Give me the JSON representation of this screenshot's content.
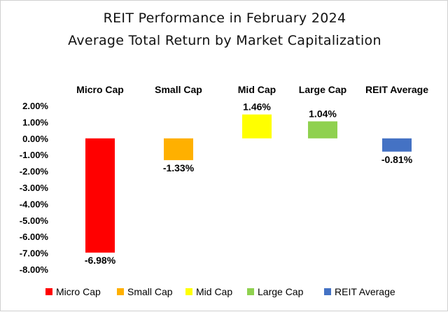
{
  "chart_data": {
    "type": "bar",
    "title": "REIT Performance in February 2024",
    "subtitle": "Average Total Return by Market Capitalization",
    "categories": [
      "Micro Cap",
      "Small Cap",
      "Mid Cap",
      "Large Cap",
      "REIT Average"
    ],
    "values": [
      -6.98,
      -1.33,
      1.46,
      1.04,
      -0.81
    ],
    "data_labels": [
      "-6.98%",
      "-1.33%",
      "1.46%",
      "1.04%",
      "-0.81%"
    ],
    "colors": [
      "#ff0000",
      "#ffb000",
      "#ffff00",
      "#8fd14f",
      "#4472c4"
    ],
    "ylim": [
      -8,
      2
    ],
    "y_ticks": [
      2,
      1,
      0,
      -1,
      -2,
      -3,
      -4,
      -5,
      -6,
      -7,
      -8
    ],
    "y_tick_labels": [
      "2.00%",
      "1.00%",
      "0.00%",
      "-1.00%",
      "-2.00%",
      "-3.00%",
      "-4.00%",
      "-5.00%",
      "-6.00%",
      "-7.00%",
      "-8.00%"
    ],
    "grid": false,
    "category_labels_position": "top",
    "legend": {
      "position": "bottom",
      "entries": [
        "Micro Cap",
        "Small Cap",
        "Mid Cap",
        "Large Cap",
        "REIT Average"
      ]
    }
  }
}
